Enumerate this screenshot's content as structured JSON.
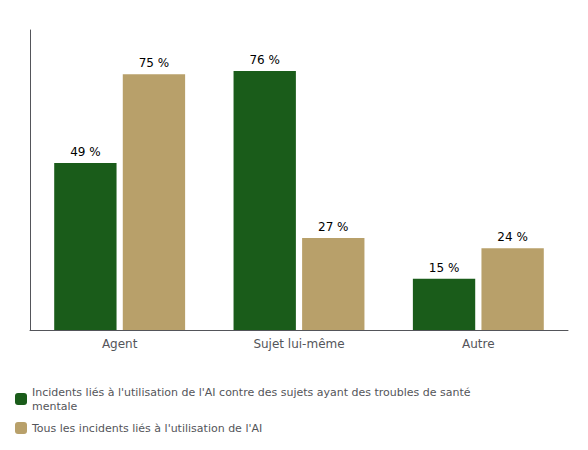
{
  "chart_data": {
    "type": "bar",
    "categories": [
      "Agent",
      "Sujet lui-même",
      "Autre"
    ],
    "series": [
      {
        "name": "Incidents liés à l'utilisation de l'AI contre des sujets ayant des troubles de santé\nmentale",
        "color": "#1a5c1a",
        "values": [
          49,
          76,
          15
        ],
        "value_labels": [
          "49 %",
          "76 %",
          "15 %"
        ]
      },
      {
        "name": "Tous les incidents liés à l'utilisation de l'AI",
        "color": "#b8a06a",
        "values": [
          75,
          27,
          24
        ],
        "value_labels": [
          "75 %",
          "27 %",
          "24 %"
        ]
      }
    ],
    "ylim": [
      0,
      88
    ],
    "yticks": [],
    "grid": false,
    "legend": "lower left",
    "data_labels": true,
    "tick_labels": "x"
  }
}
